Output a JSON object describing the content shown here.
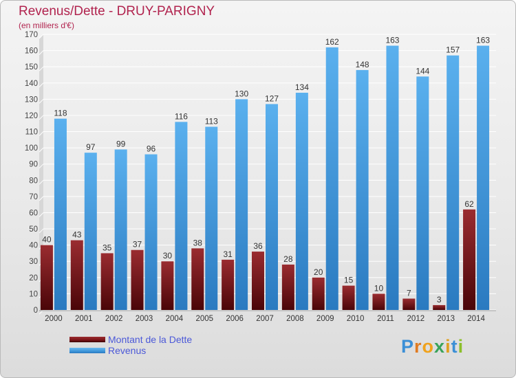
{
  "title": "Revenus/Dette - DRUY-PARIGNY",
  "subtitle": "(en milliers d'€)",
  "logo_text": "Proxiti",
  "chart_data": {
    "type": "bar",
    "categories": [
      "2000",
      "2001",
      "2002",
      "2003",
      "2004",
      "2005",
      "2006",
      "2007",
      "2008",
      "2009",
      "2010",
      "2011",
      "2012",
      "2013",
      "2014"
    ],
    "series": [
      {
        "name": "Montant de la Dette",
        "color": "#7a1418",
        "values": [
          40,
          43,
          35,
          37,
          30,
          38,
          31,
          36,
          28,
          20,
          15,
          10,
          7,
          3,
          62
        ]
      },
      {
        "name": "Revenus",
        "color": "#3f97db",
        "values": [
          118,
          97,
          99,
          96,
          116,
          113,
          130,
          127,
          134,
          162,
          148,
          163,
          144,
          157,
          163
        ]
      }
    ],
    "y_ticks": [
      0,
      10,
      20,
      30,
      40,
      50,
      60,
      70,
      80,
      90,
      100,
      110,
      120,
      130,
      140,
      150,
      160,
      170
    ],
    "ylim": [
      0,
      170
    ],
    "grid": true,
    "legend_position": "bottom-left"
  }
}
